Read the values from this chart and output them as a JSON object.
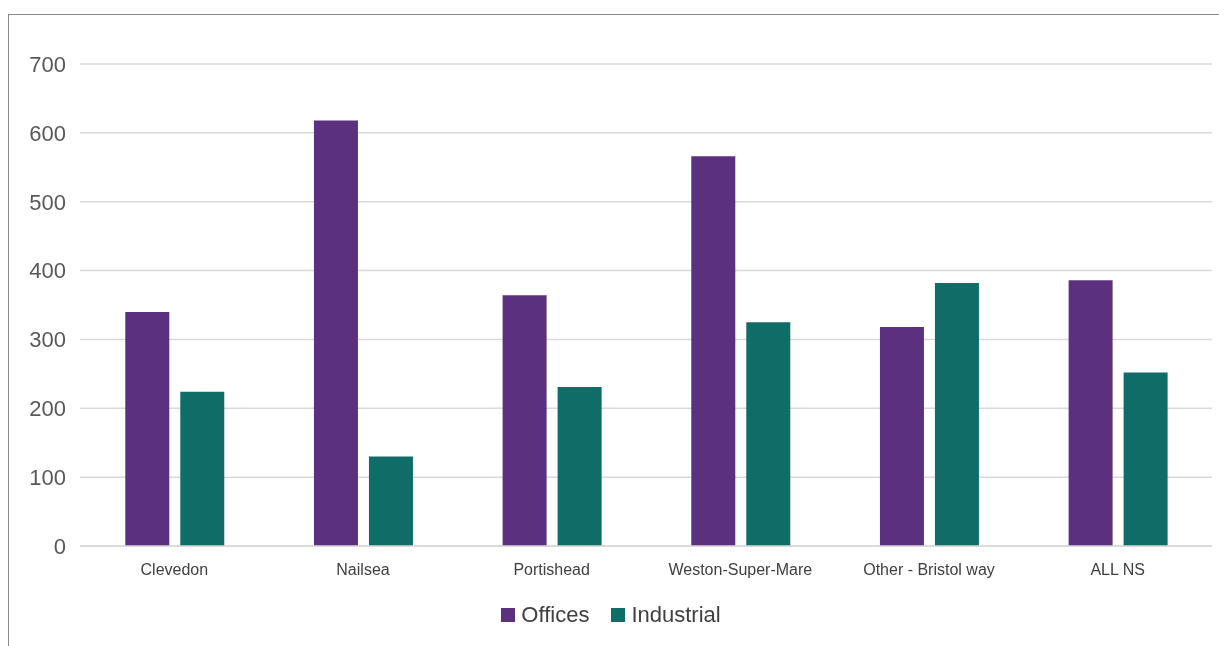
{
  "chart_data": {
    "type": "bar",
    "categories": [
      "Clevedon",
      "Nailsea",
      "Portishead",
      "Weston-Super-Mare",
      "Other - Bristol way",
      "ALL NS"
    ],
    "series": [
      {
        "name": "Offices",
        "color": "#5b317f",
        "values": [
          340,
          618,
          364,
          566,
          318,
          386
        ]
      },
      {
        "name": "Industrial",
        "color": "#106c66",
        "values": [
          224,
          130,
          231,
          325,
          382,
          252
        ]
      }
    ],
    "ylim": [
      0,
      700
    ],
    "yticks": [
      0,
      100,
      200,
      300,
      400,
      500,
      600,
      700
    ],
    "grid": "y",
    "legend": "bottom"
  }
}
